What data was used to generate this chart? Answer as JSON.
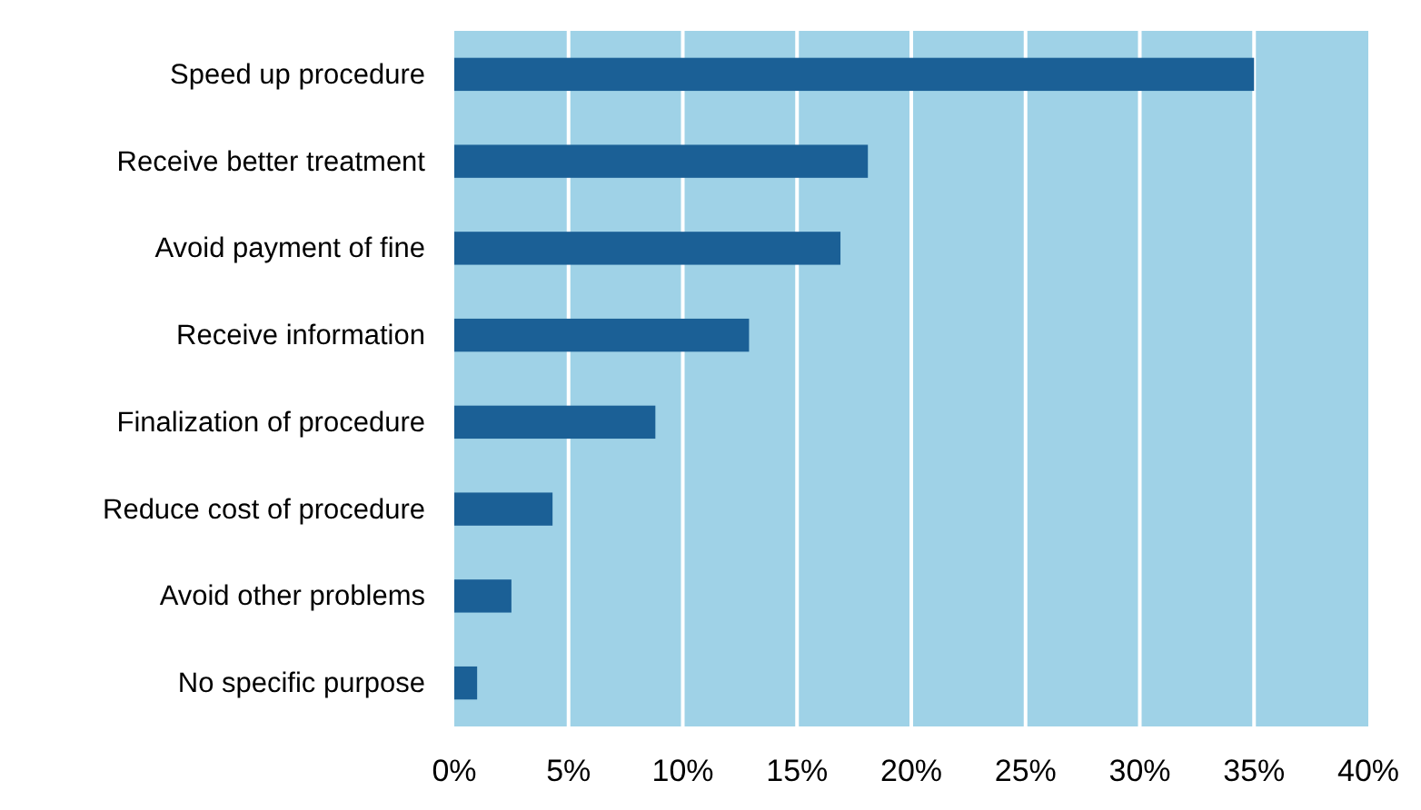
{
  "chart_data": {
    "type": "bar",
    "orientation": "horizontal",
    "categories": [
      "Speed up procedure",
      "Receive better treatment",
      "Avoid payment of fine",
      "Receive information",
      "Finalization of procedure",
      "Reduce cost of procedure",
      "Avoid other problems",
      "No specific purpose"
    ],
    "values": [
      35,
      18.1,
      16.9,
      12.9,
      8.8,
      4.3,
      2.5,
      1.0
    ],
    "color": "#1b6096",
    "xlim": [
      0,
      40
    ],
    "xticks": [
      {
        "value": 0,
        "label": "0%"
      },
      {
        "value": 5,
        "label": "5%"
      },
      {
        "value": 10,
        "label": "10%"
      },
      {
        "value": 15,
        "label": "15%"
      },
      {
        "value": 20,
        "label": "20%"
      },
      {
        "value": 25,
        "label": "25%"
      },
      {
        "value": 30,
        "label": "30%"
      },
      {
        "value": 35,
        "label": "35%"
      },
      {
        "value": 40,
        "label": "40%"
      }
    ],
    "grid": "x"
  }
}
